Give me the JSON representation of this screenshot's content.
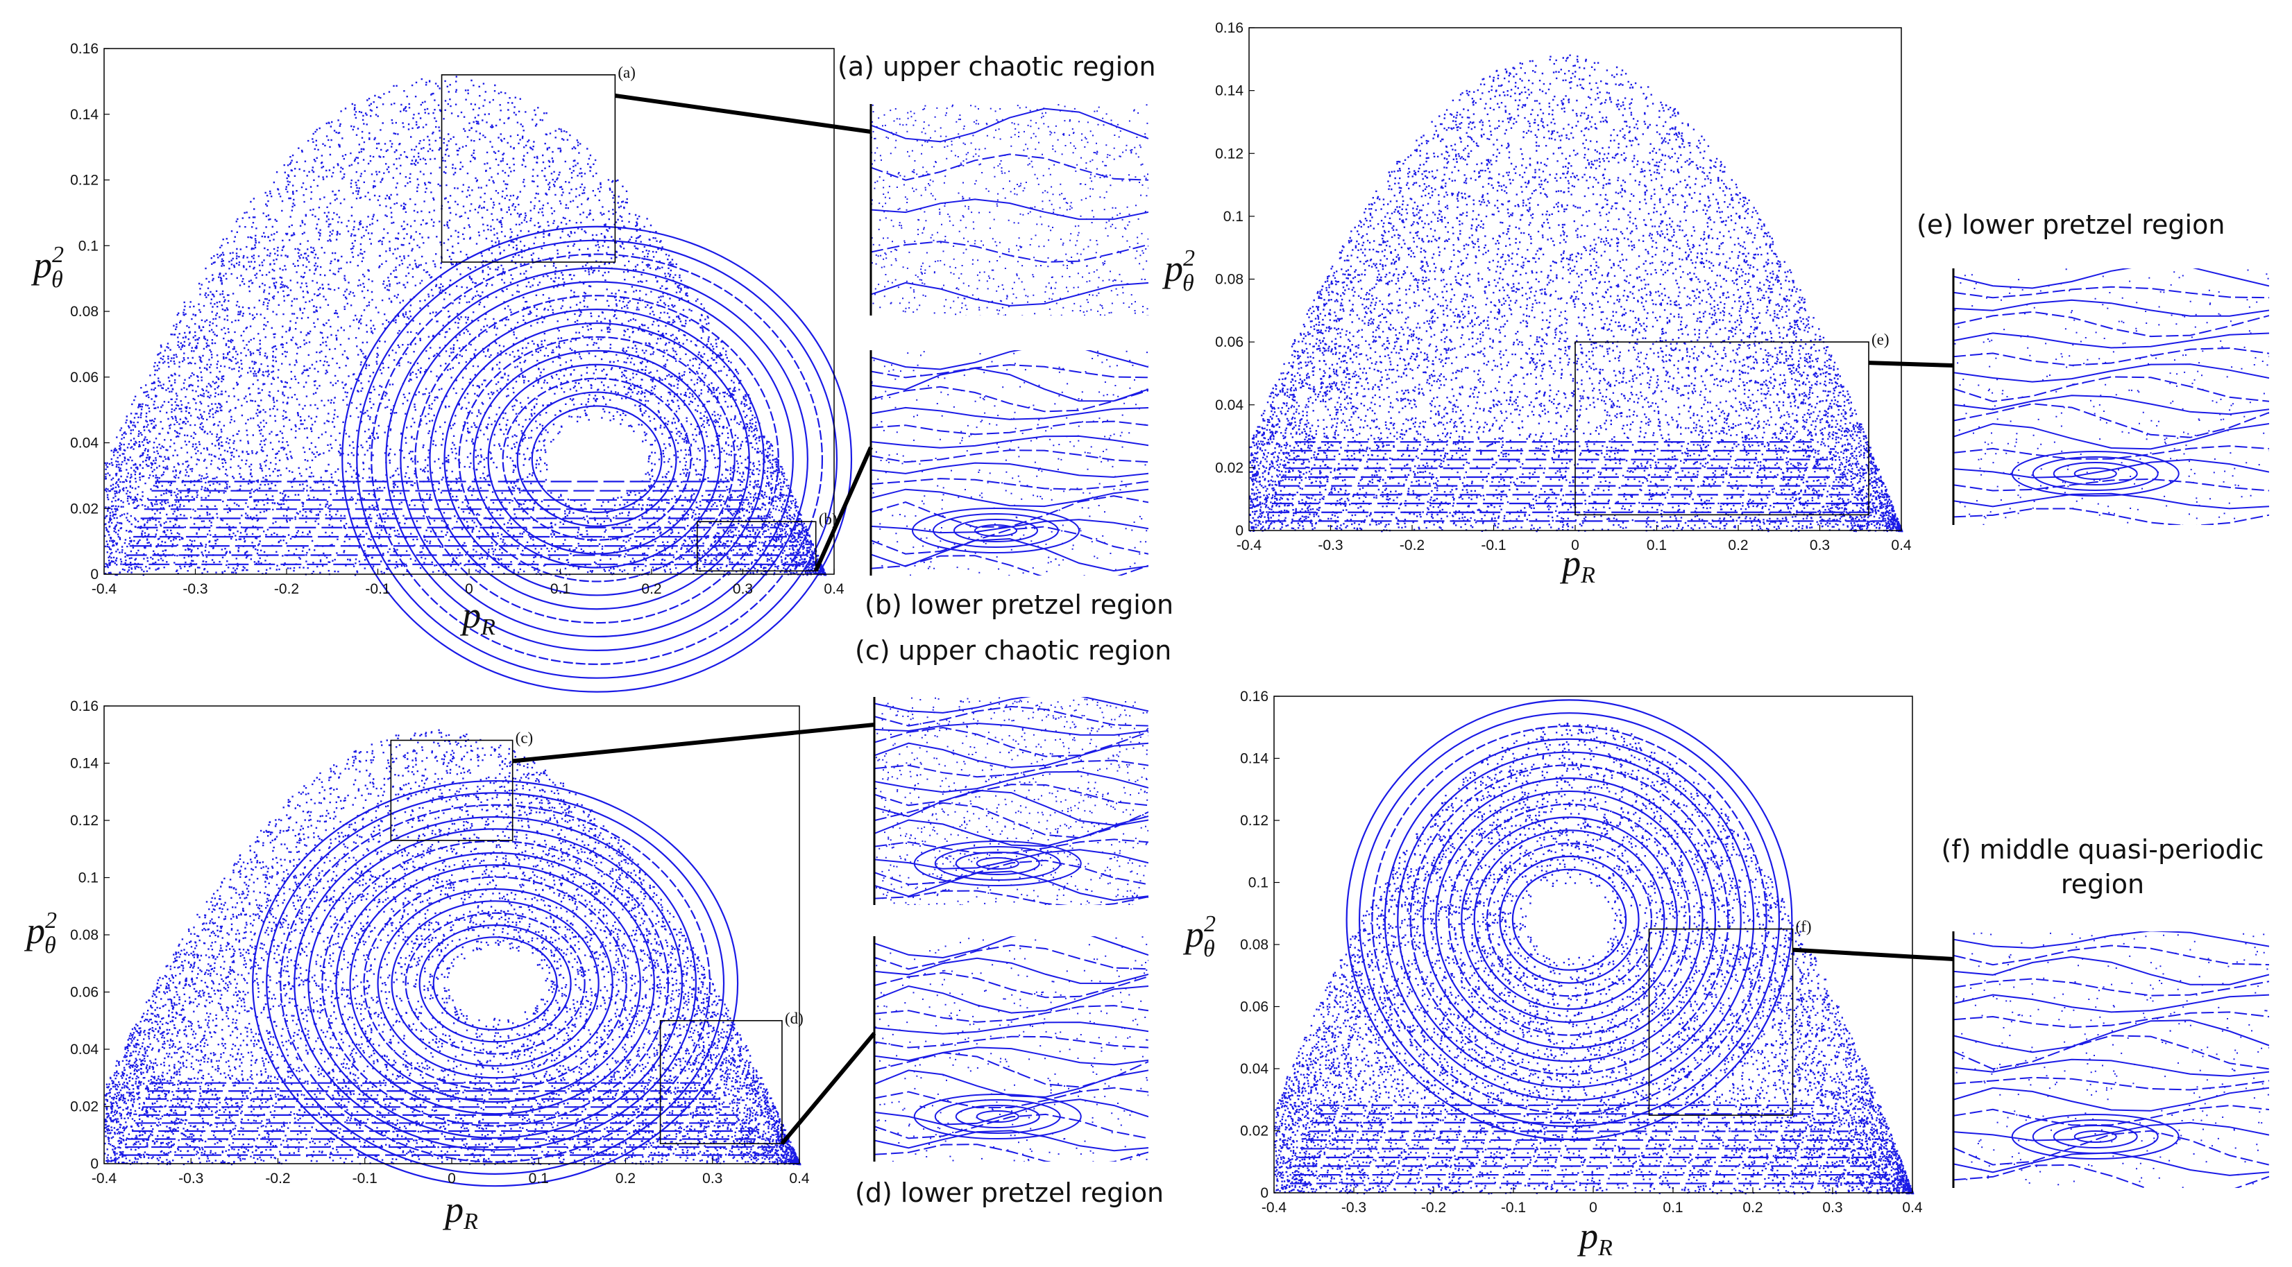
{
  "point_color": "#1a1ae6",
  "chart_data": [
    {
      "type": "scatter",
      "panel": "top-left",
      "title": "",
      "xlabel": "p_R",
      "ylabel": "p_θ^2",
      "xlim": [
        -0.4,
        0.4
      ],
      "ylim": [
        0,
        0.16
      ],
      "xticks": [
        "-0.4",
        "-0.3",
        "-0.2",
        "-0.1",
        "0",
        "0.1",
        "0.2",
        "0.3",
        "0.4"
      ],
      "yticks": [
        "0",
        "0.02",
        "0.04",
        "0.06",
        "0.08",
        "0.1",
        "0.12",
        "0.14",
        "0.16"
      ],
      "boundary_peak": [
        -0.03,
        0.152
      ],
      "island_center": [
        0.14,
        0.035
      ],
      "zoom_boxes": [
        {
          "letter": "(a)",
          "x": [
            -0.03,
            0.16
          ],
          "y": [
            0.095,
            0.152
          ]
        },
        {
          "letter": "(b)",
          "x": [
            0.25,
            0.38
          ],
          "y": [
            0.001,
            0.016
          ]
        }
      ],
      "grid": false,
      "legend": "none"
    },
    {
      "type": "scatter",
      "panel": "top-right",
      "title": "",
      "xlabel": "p_R",
      "ylabel": "p_θ^2",
      "xlim": [
        -0.4,
        0.4
      ],
      "ylim": [
        0,
        0.16
      ],
      "xticks": [
        "-0.4",
        "-0.3",
        "-0.2",
        "-0.1",
        "0",
        "0.1",
        "0.2",
        "0.3",
        "0.4"
      ],
      "yticks": [
        "0",
        "0.02",
        "0.04",
        "0.06",
        "0.08",
        "0.1",
        "0.12",
        "0.14",
        "0.16"
      ],
      "boundary_peak": [
        -0.02,
        0.152
      ],
      "zoom_boxes": [
        {
          "letter": "(e)",
          "x": [
            0.0,
            0.36
          ],
          "y": [
            0.005,
            0.06
          ]
        }
      ],
      "grid": false,
      "legend": "none"
    },
    {
      "type": "scatter",
      "panel": "bottom-left",
      "title": "",
      "xlabel": "p_R",
      "ylabel": "p_θ^2",
      "xlim": [
        -0.4,
        0.4
      ],
      "ylim": [
        0,
        0.16
      ],
      "xticks": [
        "-0.4",
        "-0.3",
        "-0.2",
        "-0.1",
        "0",
        "0.1",
        "0.2",
        "0.3",
        "0.4"
      ],
      "yticks": [
        "0",
        "0.02",
        "0.04",
        "0.06",
        "0.08",
        "0.1",
        "0.12",
        "0.14",
        "0.16"
      ],
      "boundary_peak": [
        -0.02,
        0.152
      ],
      "island_center": [
        0.05,
        0.063
      ],
      "zoom_boxes": [
        {
          "letter": "(c)",
          "x": [
            -0.07,
            0.07
          ],
          "y": [
            0.113,
            0.148
          ]
        },
        {
          "letter": "(d)",
          "x": [
            0.24,
            0.38
          ],
          "y": [
            0.007,
            0.05
          ]
        }
      ],
      "grid": false,
      "legend": "none"
    },
    {
      "type": "scatter",
      "panel": "bottom-right",
      "title": "",
      "xlabel": "p_R",
      "ylabel": "p_θ^2",
      "xlim": [
        -0.4,
        0.4
      ],
      "ylim": [
        0,
        0.16
      ],
      "xticks": [
        "-0.4",
        "-0.3",
        "-0.2",
        "-0.1",
        "0",
        "0.1",
        "0.2",
        "0.3",
        "0.4"
      ],
      "yticks": [
        "0",
        "0.02",
        "0.04",
        "0.06",
        "0.08",
        "0.1",
        "0.12",
        "0.14",
        "0.16"
      ],
      "boundary_peak": [
        -0.02,
        0.152
      ],
      "island_center": [
        -0.03,
        0.088
      ],
      "zoom_boxes": [
        {
          "letter": "(f)",
          "x": [
            0.07,
            0.25
          ],
          "y": [
            0.025,
            0.085
          ]
        }
      ],
      "grid": false,
      "legend": "none"
    }
  ],
  "insets": [
    {
      "caption": "(a) upper chaotic region",
      "style": "chaotic"
    },
    {
      "caption": "(b) lower pretzel region",
      "style": "pretzel"
    },
    {
      "caption": "(c) upper chaotic region",
      "style": "chaotic-lines"
    },
    {
      "caption": "(d) lower pretzel region",
      "style": "pretzel-mixed"
    },
    {
      "caption": "(e) lower pretzel region",
      "style": "pretzel-dense"
    },
    {
      "caption": "(f) middle quasi-periodic region",
      "style": "quasi-periodic"
    }
  ]
}
